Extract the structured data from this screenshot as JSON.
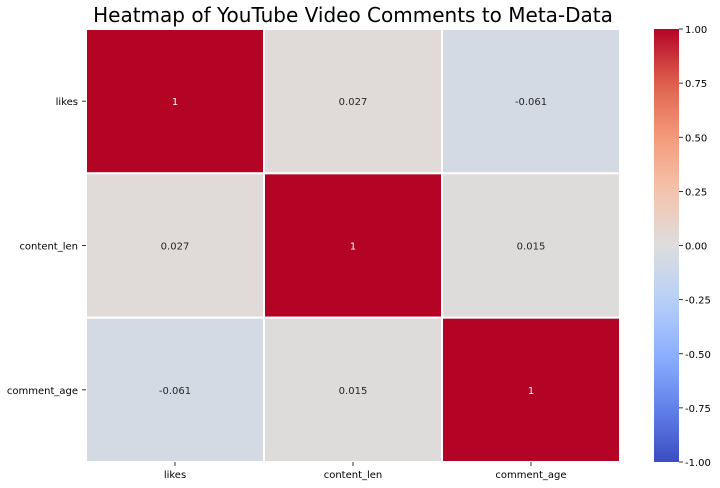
{
  "chart_data": {
    "type": "heatmap",
    "title": "Heatmap of YouTube Video Comments to Meta-Data",
    "row_labels": [
      "likes",
      "content_len",
      "comment_age"
    ],
    "col_labels": [
      "likes",
      "content_len",
      "comment_age"
    ],
    "values": [
      [
        1,
        0.027,
        -0.061
      ],
      [
        0.027,
        1,
        0.015
      ],
      [
        -0.061,
        0.015,
        1
      ]
    ],
    "annotations": [
      [
        "1",
        "0.027",
        "-0.061"
      ],
      [
        "0.027",
        "1",
        "0.015"
      ],
      [
        "-0.061",
        "0.015",
        "1"
      ]
    ],
    "colormap": "coolwarm",
    "vmin": -1,
    "vmax": 1,
    "colorbar_ticks": [
      "-1.00",
      "-0.75",
      "-0.50",
      "-0.25",
      "0.00",
      "0.25",
      "0.50",
      "0.75",
      "1.00"
    ],
    "cell_border_color": "#ffffff",
    "xlabel": "",
    "ylabel": ""
  }
}
